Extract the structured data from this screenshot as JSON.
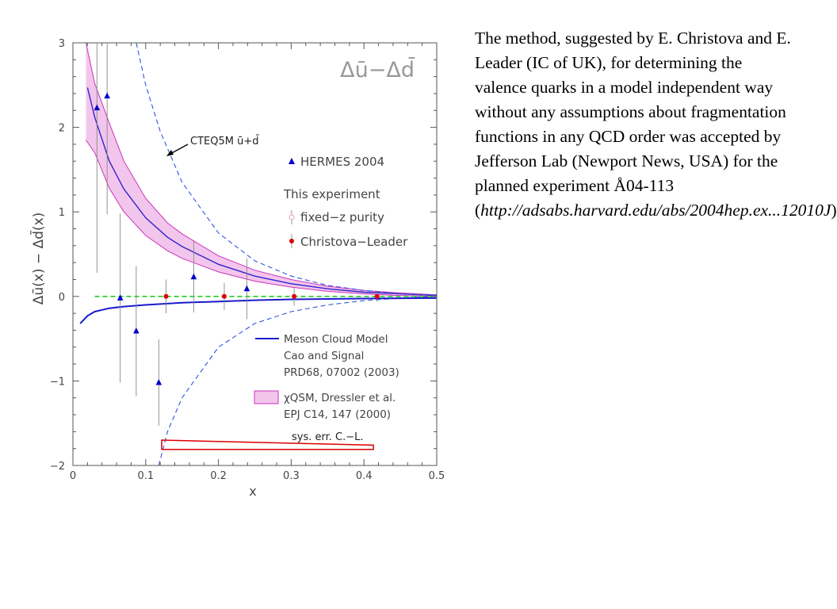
{
  "slide_text": {
    "paragraph": "The method, suggested by E. Christova and E. Leader (IC of UK), for determining the valence quarks in a model independent way without any assumptions about fragmentation functions in any QCD order was accepted by Jefferson Lab (Newport News, USA) for the planned experiment Å04-113",
    "paren_open": "(",
    "link": "http://adsabs.harvard.edu/abs/2004hep.ex...12010J",
    "paren_close": ")"
  },
  "chart_data": {
    "type": "scatter",
    "title": "Δū−Δd̄",
    "xlabel": "x",
    "ylabel": "Δū(x) − Δd̄(x)",
    "xlim": [
      0,
      0.5
    ],
    "ylim": [
      -2,
      3
    ],
    "x_ticks": [
      0,
      0.1,
      0.2,
      0.3,
      0.4,
      0.5
    ],
    "x_tick_labels": [
      "0",
      "0.1",
      "0.2",
      "0.3",
      "0.4",
      "0.5"
    ],
    "y_ticks": [
      -2,
      -1,
      0,
      1,
      2,
      3
    ],
    "y_tick_labels": [
      "−2",
      "−1",
      "0",
      "1",
      "2",
      "3"
    ],
    "grid": false,
    "legend": {
      "placement": "right",
      "hermes": "HERMES 2004",
      "this_experiment": "This experiment",
      "fixed_z": "fixed−z purity",
      "christova": "Christova−Leader",
      "meson_line1": "Meson Cloud Model",
      "meson_line2": "Cao and Signal",
      "meson_line3": "PRD68, 07002 (2003)",
      "chiqsm_line1": "χQSM,  Dressler et al.",
      "chiqsm_line2": "EPJ C14, 147 (2000)"
    },
    "annotations": {
      "cteq": "CTEQ5M ū+d̄",
      "syserr": "sys. err. C.−L."
    },
    "colors": {
      "hermes": "#0000cc",
      "christova": "#dd0000",
      "meson": "#1a1acc",
      "band_fill": "#f2c6ec",
      "band_edge": "#cc33bb",
      "cteq": "#3355dd",
      "zero_line": "#22cc22",
      "syserr": "#dd0000"
    },
    "series": [
      {
        "name": "HERMES 2004",
        "kind": "points",
        "marker": "triangle",
        "points": [
          {
            "x": 0.033,
            "y": 2.23,
            "err": 1.95
          },
          {
            "x": 0.047,
            "y": 2.37,
            "err": 1.4
          },
          {
            "x": 0.065,
            "y": -0.02,
            "err": 1.0
          },
          {
            "x": 0.087,
            "y": -0.41,
            "err": 0.77
          },
          {
            "x": 0.118,
            "y": -1.02,
            "err": 0.51
          },
          {
            "x": 0.166,
            "y": 0.23,
            "err": 0.42
          },
          {
            "x": 0.239,
            "y": 0.09,
            "err": 0.36
          }
        ]
      },
      {
        "name": "Christova−Leader",
        "kind": "points",
        "marker": "circle",
        "points": [
          {
            "x": 0.128,
            "y": 0.0,
            "err": 0.2
          },
          {
            "x": 0.208,
            "y": 0.0,
            "err": 0.16
          },
          {
            "x": 0.304,
            "y": 0.0,
            "err": 0.11
          },
          {
            "x": 0.418,
            "y": 0.0,
            "err": 0.06
          }
        ]
      },
      {
        "name": "Meson Cloud Model",
        "kind": "line",
        "x": [
          0.01,
          0.02,
          0.03,
          0.05,
          0.07,
          0.1,
          0.15,
          0.2,
          0.25,
          0.3,
          0.4,
          0.5
        ],
        "y": [
          -0.32,
          -0.23,
          -0.18,
          -0.14,
          -0.12,
          -0.1,
          -0.075,
          -0.06,
          -0.045,
          -0.035,
          -0.025,
          -0.02
        ]
      },
      {
        "name": "χQSM band center",
        "kind": "line",
        "x": [
          0.02,
          0.03,
          0.05,
          0.07,
          0.1,
          0.13,
          0.15,
          0.2,
          0.25,
          0.3,
          0.35,
          0.4,
          0.45,
          0.5
        ],
        "y": [
          2.47,
          2.12,
          1.6,
          1.27,
          0.93,
          0.7,
          0.59,
          0.38,
          0.24,
          0.15,
          0.09,
          0.05,
          0.03,
          0.01
        ]
      },
      {
        "name": "χQSM band upper",
        "kind": "band_edge",
        "x": [
          0.018,
          0.03,
          0.05,
          0.07,
          0.1,
          0.13,
          0.15,
          0.2,
          0.25,
          0.3,
          0.35,
          0.4,
          0.45,
          0.5
        ],
        "y": [
          3.0,
          2.52,
          2.05,
          1.6,
          1.16,
          0.87,
          0.74,
          0.48,
          0.31,
          0.2,
          0.12,
          0.07,
          0.04,
          0.02
        ]
      },
      {
        "name": "χQSM band lower",
        "kind": "band_edge",
        "x": [
          0.018,
          0.03,
          0.05,
          0.07,
          0.1,
          0.13,
          0.15,
          0.2,
          0.25,
          0.3,
          0.35,
          0.4,
          0.45,
          0.5
        ],
        "y": [
          1.85,
          1.7,
          1.28,
          1.0,
          0.72,
          0.54,
          0.45,
          0.29,
          0.18,
          0.11,
          0.06,
          0.03,
          0.01,
          0.0
        ]
      },
      {
        "name": "CTEQ5M upper",
        "kind": "line",
        "x": [
          0.087,
          0.1,
          0.12,
          0.15,
          0.2,
          0.25,
          0.3,
          0.35,
          0.4,
          0.45,
          0.5
        ],
        "y": [
          3.0,
          2.5,
          1.95,
          1.35,
          0.75,
          0.42,
          0.24,
          0.13,
          0.07,
          0.03,
          0.01
        ]
      },
      {
        "name": "CTEQ5M lower",
        "kind": "line",
        "x": [
          0.118,
          0.13,
          0.15,
          0.2,
          0.25,
          0.3,
          0.35,
          0.4,
          0.45,
          0.5
        ],
        "y": [
          -2.0,
          -1.6,
          -1.2,
          -0.6,
          -0.32,
          -0.18,
          -0.1,
          -0.05,
          -0.02,
          0.0
        ]
      },
      {
        "name": "zero line",
        "kind": "line",
        "x": [
          0.03,
          0.5
        ],
        "y": [
          0,
          0
        ]
      },
      {
        "name": "sys. err. C.−L.",
        "kind": "syserr_box",
        "x_range": [
          0.122,
          0.413
        ],
        "y_top_left": -1.7,
        "y_top_right": -1.76,
        "y_bottom": -1.81
      }
    ]
  }
}
